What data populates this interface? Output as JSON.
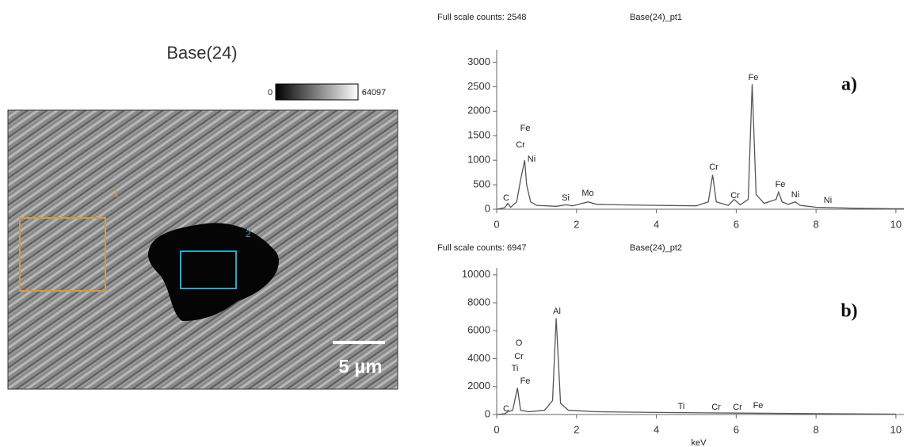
{
  "image": {
    "title": "Base(24)",
    "colorbar_min": "0",
    "colorbar_max": "64097",
    "scale_bar": "5 µm",
    "region_1": "1",
    "region_2": "2"
  },
  "chart_data": [
    {
      "type": "line",
      "header": "Full scale counts: 2548",
      "title": "Base(24)_pt1",
      "tag": "a)",
      "x": [
        0,
        0.2,
        0.28,
        0.35,
        0.5,
        0.6,
        0.7,
        0.75,
        0.85,
        1.0,
        1.5,
        1.74,
        1.9,
        2.29,
        2.5,
        3,
        4,
        5,
        5.3,
        5.41,
        5.5,
        5.8,
        5.95,
        6.1,
        6.3,
        6.4,
        6.5,
        6.7,
        7.0,
        7.06,
        7.15,
        7.3,
        7.48,
        7.6,
        8.0,
        8.5,
        9,
        10,
        10.2
      ],
      "values": [
        0,
        30,
        120,
        40,
        150,
        600,
        1000,
        500,
        150,
        80,
        60,
        90,
        70,
        150,
        100,
        90,
        80,
        70,
        150,
        700,
        150,
        80,
        200,
        90,
        200,
        2550,
        300,
        120,
        200,
        350,
        150,
        100,
        150,
        80,
        40,
        30,
        20,
        10,
        10
      ],
      "color": "#555555",
      "xlim": [
        0,
        10.2
      ],
      "ylim": [
        0,
        3250
      ],
      "xticks": [
        0,
        2,
        4,
        6,
        8,
        10
      ],
      "yticks": [
        0,
        500,
        1000,
        1500,
        2000,
        2500,
        3000
      ],
      "annotations": [
        "C",
        "Fe",
        "Cr",
        "Ni",
        "Si",
        "Mo",
        "Cr",
        "Fe",
        "Cr",
        "Fe",
        "Ni",
        "Ni"
      ]
    },
    {
      "type": "line",
      "header": "Full scale counts: 6947",
      "title": "Base(24)_pt2",
      "tag": "b)",
      "xlabel": "keV",
      "x": [
        0,
        0.2,
        0.28,
        0.4,
        0.52,
        0.6,
        0.8,
        1.2,
        1.4,
        1.49,
        1.6,
        1.8,
        2.5,
        4,
        6,
        8,
        10
      ],
      "values": [
        0,
        50,
        200,
        300,
        1900,
        300,
        200,
        300,
        1000,
        6900,
        800,
        300,
        200,
        150,
        100,
        60,
        30
      ],
      "color": "#555555",
      "xlim": [
        0,
        10.2
      ],
      "ylim": [
        0,
        10500
      ],
      "xticks": [
        0,
        2,
        4,
        6,
        8,
        10
      ],
      "yticks": [
        0,
        2000,
        4000,
        6000,
        8000,
        10000
      ],
      "annotations": [
        "O",
        "Cr",
        "Ti",
        "Fe",
        "Al",
        "C",
        "Ti",
        "Cr",
        "Cr",
        "Fe"
      ]
    }
  ]
}
